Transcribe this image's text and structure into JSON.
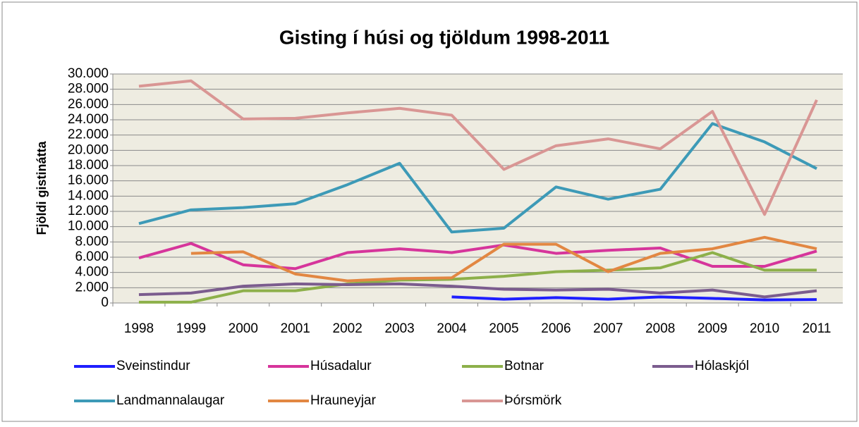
{
  "chart_data": {
    "type": "line",
    "title": "Gisting í húsi og tjöldum 1998-2011",
    "y_label": "Fjöldi gistinátta",
    "categories": [
      "1998",
      "1999",
      "2000",
      "2001",
      "2002",
      "2003",
      "2004",
      "2005",
      "2006",
      "2007",
      "2008",
      "2009",
      "2010",
      "2011"
    ],
    "ylim": [
      0,
      30000
    ],
    "yticks": [
      0,
      {
        "value": 2000,
        "label": "2.000"
      },
      {
        "value": 4000,
        "label": "4.000"
      },
      {
        "value": 6000,
        "label": "6.000"
      },
      {
        "value": 8000,
        "label": "8.000"
      },
      {
        "value": 10000,
        "label": "10.000"
      },
      {
        "value": 12000,
        "label": "12.000"
      },
      {
        "value": 14000,
        "label": "14.000"
      },
      {
        "value": 16000,
        "label": "16.000"
      },
      {
        "value": 18000,
        "label": "18.000"
      },
      {
        "value": 20000,
        "label": "20.000"
      },
      {
        "value": 22000,
        "label": "22.000"
      },
      {
        "value": 24000,
        "label": "24.000"
      },
      {
        "value": 26000,
        "label": "26.000"
      },
      {
        "value": 28000,
        "label": "28.000"
      },
      {
        "value": 30000,
        "label": "30.000"
      }
    ],
    "grid": true,
    "legend": "bottom",
    "series": [
      {
        "name": "Sveinstindur",
        "color": "#1f1fff",
        "values": [
          null,
          null,
          null,
          null,
          null,
          null,
          800,
          500,
          700,
          500,
          800,
          600,
          400,
          450
        ]
      },
      {
        "name": "Húsadalur",
        "color": "#d6359b",
        "values": [
          5900,
          7800,
          5000,
          4500,
          6600,
          7100,
          6600,
          7600,
          6500,
          6900,
          7200,
          4800,
          4800,
          6800
        ]
      },
      {
        "name": "Botnar",
        "color": "#8db04a",
        "values": [
          100,
          100,
          1600,
          1600,
          2500,
          3000,
          3100,
          3500,
          4100,
          4300,
          4600,
          6600,
          4300,
          4300
        ]
      },
      {
        "name": "Hólaskjól",
        "color": "#7b5c8e",
        "values": [
          1100,
          1300,
          2200,
          2500,
          2400,
          2500,
          2200,
          1800,
          1700,
          1800,
          1300,
          1700,
          800,
          1600
        ]
      },
      {
        "name": "Landmannalaugar",
        "color": "#3d9ab7",
        "values": [
          10400,
          12200,
          12500,
          13000,
          15500,
          18300,
          9300,
          9800,
          15200,
          13600,
          14900,
          23500,
          21100,
          17600
        ]
      },
      {
        "name": "Hrauneyjar",
        "color": "#e28742",
        "values": [
          null,
          6500,
          6700,
          3800,
          2900,
          3200,
          3300,
          7700,
          7700,
          4100,
          6500,
          7100,
          8600,
          7100
        ]
      },
      {
        "name": "Þórsmörk",
        "color": "#d99694",
        "values": [
          28400,
          29100,
          24100,
          24200,
          24900,
          25500,
          24600,
          17500,
          20600,
          21500,
          20200,
          25100,
          11600,
          26600
        ]
      }
    ]
  }
}
